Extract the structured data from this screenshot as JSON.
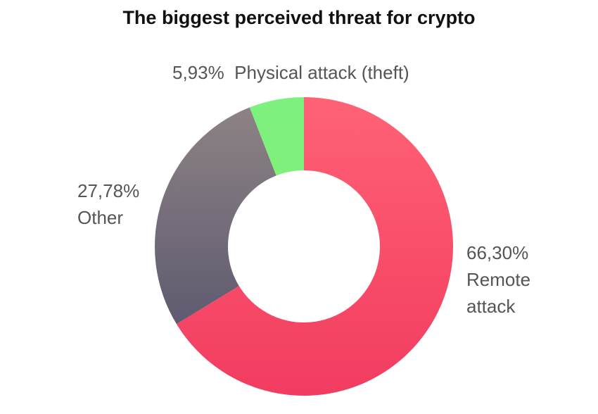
{
  "chart_data": {
    "type": "pie",
    "title": "The biggest perceived threat for crypto",
    "donut": true,
    "slices": [
      {
        "name": "Remote attack",
        "value": 66.3,
        "label_pct": "66,30%",
        "label_lines": [
          "Remote",
          "attack"
        ],
        "color": "#f7536f"
      },
      {
        "name": "Other",
        "value": 27.78,
        "label_pct": "27,78%",
        "label_lines": [
          "Other"
        ],
        "color": "#7a7278"
      },
      {
        "name": "Physical attack (theft)",
        "value": 5.93,
        "label_pct": "5,93%",
        "label_lines": [
          "Physical attack (theft)"
        ],
        "color": "#7ef07f"
      }
    ]
  }
}
